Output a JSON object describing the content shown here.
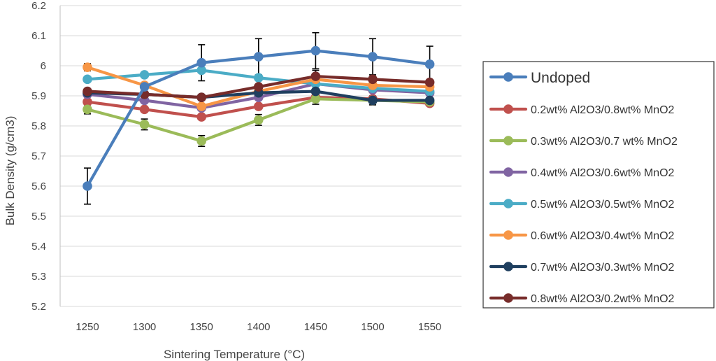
{
  "chart_data": {
    "type": "line",
    "xlabel": "Sintering Temperature (°C)",
    "ylabel": "Bulk Density (g/cm3)",
    "x": [
      1250,
      1300,
      1350,
      1400,
      1450,
      1500,
      1550
    ],
    "x_tick_labels": [
      "1250",
      "1300",
      "1350",
      "1400",
      "1450",
      "1500",
      "1550"
    ],
    "ylim": [
      5.2,
      6.2
    ],
    "y_tick_labels": [
      "5.2",
      "5.3",
      "5.4",
      "5.5",
      "5.6",
      "5.7",
      "5.8",
      "5.9",
      "6",
      "6.1",
      "6.2"
    ],
    "grid": true,
    "legend_position": "right",
    "series": [
      {
        "name": "Undoped",
        "color": "#4a7ebb",
        "values": [
          5.6,
          5.93,
          6.01,
          6.03,
          6.05,
          6.03,
          6.005
        ],
        "errors": [
          0.06,
          null,
          0.06,
          0.06,
          0.06,
          0.06,
          0.06
        ]
      },
      {
        "name": "0.2wt% Al2O3/0.8wt% MnO2",
        "color": "#c0504d",
        "values": [
          5.88,
          5.855,
          5.83,
          5.865,
          5.895,
          5.89,
          5.875
        ],
        "errors": [
          null,
          null,
          null,
          null,
          null,
          null,
          null
        ]
      },
      {
        "name": "0.3wt% Al2O3/0.7 wt% MnO2",
        "color": "#9bbb59",
        "values": [
          5.855,
          5.805,
          5.75,
          5.82,
          5.89,
          5.885,
          5.88
        ],
        "errors": [
          0.015,
          0.018,
          0.018,
          0.018,
          0.018,
          0.015,
          null
        ]
      },
      {
        "name": "0.4wt% Al2O3/0.6wt% MnO2",
        "color": "#8064a2",
        "values": [
          5.905,
          5.885,
          5.86,
          5.895,
          5.94,
          5.92,
          5.91
        ],
        "errors": [
          null,
          null,
          null,
          null,
          null,
          null,
          null
        ]
      },
      {
        "name": "0.5wt% Al2O3/0.5wt% MnO2",
        "color": "#4bacc6",
        "values": [
          5.955,
          5.97,
          5.985,
          5.96,
          5.94,
          5.925,
          5.915
        ],
        "errors": [
          null,
          null,
          null,
          null,
          null,
          null,
          null
        ]
      },
      {
        "name": "0.6wt% Al2O3/0.4wt% MnO2",
        "color": "#f79646",
        "values": [
          5.995,
          5.935,
          5.865,
          5.915,
          5.955,
          5.935,
          5.93
        ],
        "errors": [
          0.012,
          null,
          null,
          null,
          null,
          null,
          null
        ]
      },
      {
        "name": "0.7wt% Al2O3/0.3wt% MnO2",
        "color": "#1f3f5f",
        "values": [
          5.91,
          5.905,
          5.895,
          5.91,
          5.915,
          5.885,
          5.885
        ],
        "errors": [
          null,
          null,
          null,
          null,
          null,
          null,
          null
        ]
      },
      {
        "name": "0.8wt% Al2O3/0.2wt% MnO2",
        "color": "#772c2a",
        "values": [
          5.915,
          5.905,
          5.895,
          5.93,
          5.965,
          5.955,
          5.945
        ],
        "errors": [
          null,
          0.02,
          null,
          null,
          0.02,
          null,
          null
        ]
      }
    ]
  }
}
